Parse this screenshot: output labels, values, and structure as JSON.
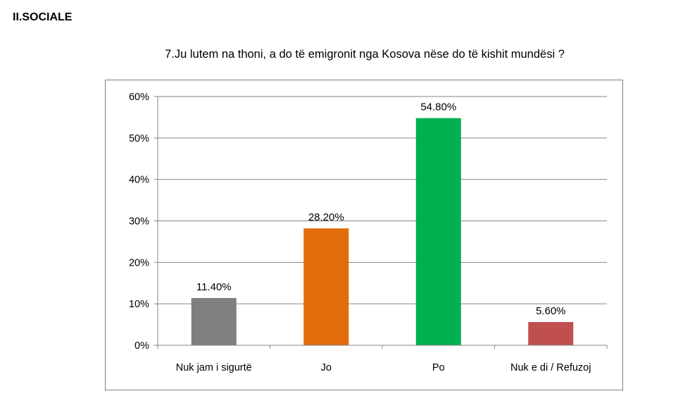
{
  "page": {
    "section_heading": "II.SOCIALE",
    "question": "7.Ju lutem na thoni, a do të emigronit nga Kosova nëse do të kishit mundësi ?"
  },
  "chart_data": {
    "type": "bar",
    "title": "7.Ju lutem na thoni, a do të emigronit nga Kosova nëse do të kishit mundësi ?",
    "xlabel": "",
    "ylabel": "",
    "categories": [
      "Nuk jam i sigurtë",
      "Jo",
      "Po",
      "Nuk e di / Refuzoj"
    ],
    "values": [
      11.4,
      28.2,
      54.8,
      5.6
    ],
    "data_labels": [
      "11.40%",
      "28.20%",
      "54.80%",
      "5.60%"
    ],
    "bar_colors": [
      "#7f7f7f",
      "#e36c0a",
      "#00b050",
      "#c0504d"
    ],
    "ylim": [
      0,
      60
    ],
    "yticks": [
      0,
      10,
      20,
      30,
      40,
      50,
      60
    ],
    "ytick_labels": [
      "0%",
      "10%",
      "20%",
      "30%",
      "40%",
      "50%",
      "60%"
    ],
    "grid": true,
    "legend": "none"
  }
}
